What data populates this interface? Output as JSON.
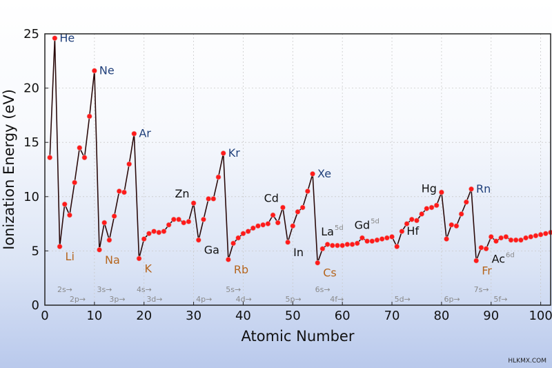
{
  "chart_data": {
    "type": "line",
    "xlabel": "Atomic Number",
    "ylabel": "Ionization Energy (eV)",
    "xlim": [
      0,
      102
    ],
    "ylim": [
      0,
      25
    ],
    "xticks": [
      0,
      10,
      20,
      30,
      40,
      50,
      60,
      70,
      80,
      90,
      100
    ],
    "yticks": [
      0,
      5,
      10,
      15,
      20,
      25
    ],
    "grid": true,
    "series": [
      {
        "marker_color": "#ff1a1a",
        "line_color": "#2a0a0a",
        "x": [
          1,
          2,
          3,
          4,
          5,
          6,
          7,
          8,
          9,
          10,
          11,
          12,
          13,
          14,
          15,
          16,
          17,
          18,
          19,
          20,
          21,
          22,
          23,
          24,
          25,
          26,
          27,
          28,
          29,
          30,
          31,
          32,
          33,
          34,
          35,
          36,
          37,
          38,
          39,
          40,
          41,
          42,
          43,
          44,
          45,
          46,
          47,
          48,
          49,
          50,
          51,
          52,
          53,
          54,
          55,
          56,
          57,
          58,
          59,
          60,
          61,
          62,
          63,
          64,
          65,
          66,
          67,
          68,
          69,
          70,
          71,
          72,
          73,
          74,
          75,
          76,
          77,
          78,
          79,
          80,
          81,
          82,
          83,
          84,
          85,
          86,
          87,
          88,
          89,
          90,
          91,
          92,
          93,
          94,
          95,
          96,
          97,
          98,
          99,
          100,
          101,
          102
        ],
        "y": [
          13.6,
          24.6,
          5.4,
          9.3,
          8.3,
          11.3,
          14.5,
          13.6,
          17.4,
          21.6,
          5.1,
          7.6,
          6.0,
          8.2,
          10.5,
          10.4,
          13.0,
          15.8,
          4.3,
          6.1,
          6.6,
          6.8,
          6.7,
          6.8,
          7.4,
          7.9,
          7.9,
          7.6,
          7.7,
          9.4,
          6.0,
          7.9,
          9.8,
          9.8,
          11.8,
          14.0,
          4.2,
          5.7,
          6.2,
          6.6,
          6.8,
          7.1,
          7.3,
          7.4,
          7.5,
          8.3,
          7.6,
          9.0,
          5.8,
          7.3,
          8.6,
          9.0,
          10.5,
          12.1,
          3.9,
          5.2,
          5.6,
          5.5,
          5.5,
          5.5,
          5.6,
          5.6,
          5.7,
          6.2,
          5.9,
          5.9,
          6.0,
          6.1,
          6.2,
          6.3,
          5.4,
          6.8,
          7.5,
          7.9,
          7.8,
          8.4,
          8.9,
          9.0,
          9.2,
          10.4,
          6.1,
          7.4,
          7.3,
          8.4,
          9.5,
          10.7,
          4.1,
          5.3,
          5.2,
          6.3,
          5.9,
          6.2,
          6.3,
          6.0,
          6.0,
          6.0,
          6.2,
          6.3,
          6.4,
          6.5,
          6.6,
          6.7
        ]
      }
    ],
    "element_labels": [
      {
        "z": 2,
        "text": "He",
        "color": "#1f3f7a",
        "pos": "right"
      },
      {
        "z": 10,
        "text": "Ne",
        "color": "#1f3f7a",
        "pos": "right"
      },
      {
        "z": 18,
        "text": "Ar",
        "color": "#1f3f7a",
        "pos": "right"
      },
      {
        "z": 36,
        "text": "Kr",
        "color": "#1f3f7a",
        "pos": "right"
      },
      {
        "z": 54,
        "text": "Xe",
        "color": "#1f3f7a",
        "pos": "right"
      },
      {
        "z": 86,
        "text": "Rn",
        "color": "#1f3f7a",
        "pos": "right"
      },
      {
        "z": 3,
        "text": "Li",
        "color": "#b5651d",
        "pos": "right-below"
      },
      {
        "z": 11,
        "text": "Na",
        "color": "#b5651d",
        "pos": "right-below"
      },
      {
        "z": 19,
        "text": "K",
        "color": "#b5651d",
        "pos": "right-below"
      },
      {
        "z": 37,
        "text": "Rb",
        "color": "#b5651d",
        "pos": "right-below"
      },
      {
        "z": 55,
        "text": "Cs",
        "color": "#b5651d",
        "pos": "right-below"
      },
      {
        "z": 87,
        "text": "Fr",
        "color": "#b5651d",
        "pos": "right-below"
      },
      {
        "z": 30,
        "text": "Zn",
        "color": "#111111",
        "pos": "left-above"
      },
      {
        "z": 48,
        "text": "Cd",
        "color": "#111111",
        "pos": "left-above"
      },
      {
        "z": 80,
        "text": "Hg",
        "color": "#111111",
        "pos": "left"
      },
      {
        "z": 31,
        "text": "Ga",
        "color": "#111111",
        "pos": "right-below"
      },
      {
        "z": 49,
        "text": "In",
        "color": "#111111",
        "pos": "right-below"
      },
      {
        "z": 57,
        "text": "La",
        "color": "#111111",
        "pos": "above",
        "sup": "5d"
      },
      {
        "z": 64,
        "text": "Gd",
        "color": "#111111",
        "pos": "above",
        "sup": "5d"
      },
      {
        "z": 72,
        "text": "Hf",
        "color": "#111111",
        "pos": "right"
      },
      {
        "z": 89,
        "text": "Ac",
        "color": "#111111",
        "pos": "right-below",
        "sup": "6d"
      }
    ],
    "shell_labels": [
      {
        "text": "2s→",
        "x": 2.5,
        "row": 1
      },
      {
        "text": "2p→",
        "x": 5.0,
        "row": 2
      },
      {
        "text": "3s→",
        "x": 10.5,
        "row": 1
      },
      {
        "text": "3p→",
        "x": 13.0,
        "row": 2
      },
      {
        "text": "4s→",
        "x": 18.5,
        "row": 1
      },
      {
        "text": "3d→",
        "x": 20.5,
        "row": 2
      },
      {
        "text": "4p→",
        "x": 30.5,
        "row": 2
      },
      {
        "text": "5s→",
        "x": 36.5,
        "row": 1
      },
      {
        "text": "4d→",
        "x": 38.5,
        "row": 2
      },
      {
        "text": "5p→",
        "x": 48.5,
        "row": 2
      },
      {
        "text": "6s→",
        "x": 54.5,
        "row": 1
      },
      {
        "text": "4f→",
        "x": 57.5,
        "row": 2
      },
      {
        "text": "5d→",
        "x": 70.5,
        "row": 2
      },
      {
        "text": "6p→",
        "x": 80.5,
        "row": 2
      },
      {
        "text": "7s→",
        "x": 86.5,
        "row": 1
      },
      {
        "text": "5f→",
        "x": 90.5,
        "row": 2
      }
    ]
  },
  "watermark": "HLKMX.COM"
}
